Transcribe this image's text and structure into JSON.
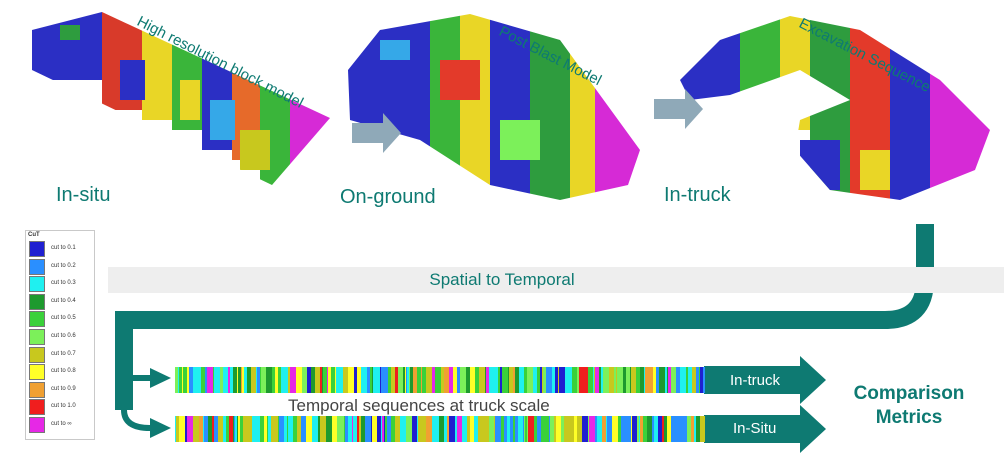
{
  "stages": {
    "in_situ": "In-situ",
    "on_ground": "On-ground",
    "in_truck": "In-truck"
  },
  "models": {
    "block_model": "High resolution block model",
    "post_blast": "Post Blast Model",
    "excavation": "Excavation Sequence"
  },
  "legend": {
    "title": "CuT",
    "items": [
      {
        "label": "cut  to 0.1",
        "color": "#1f1fd0"
      },
      {
        "label": "cut  to 0.2",
        "color": "#2a8fff"
      },
      {
        "label": "cut  to 0.3",
        "color": "#1ff0f0"
      },
      {
        "label": "cut  to 0.4",
        "color": "#1e9a2e"
      },
      {
        "label": "cut  to 0.5",
        "color": "#3ad13a"
      },
      {
        "label": "cut  to 0.6",
        "color": "#7cf05a"
      },
      {
        "label": "cut  to 0.7",
        "color": "#c8c81e"
      },
      {
        "label": "cut  to 0.8",
        "color": "#ffff28"
      },
      {
        "label": "cut  to 0.9",
        "color": "#f0a032"
      },
      {
        "label": "cut  to 1.0",
        "color": "#f01e1e"
      },
      {
        "label": "cut  to ∞",
        "color": "#e628e6"
      }
    ]
  },
  "flow": {
    "spatial_to_temporal": "Spatial to Temporal",
    "sequence_caption": "Temporal sequences at truck scale",
    "in_truck_label": "In-truck",
    "in_situ_label": "In-Situ",
    "comparison_line1": "Comparison",
    "comparison_line2": "Metrics"
  },
  "colors": {
    "accent": "#0e7a72",
    "arrow_grey": "#8fa9b8"
  }
}
